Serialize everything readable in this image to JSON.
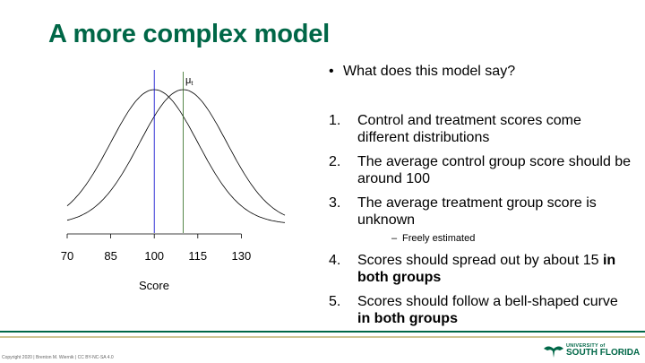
{
  "slide": {
    "title": "A more complex model",
    "bullet": "What does this model say?",
    "items": [
      {
        "num": "1.",
        "text": "Control and treatment scores come different distributions"
      },
      {
        "num": "2.",
        "text": "The average control group score should be around 100"
      },
      {
        "num": "3.",
        "text": "The average treatment group score is unknown"
      },
      {
        "num": "4.",
        "pre": "Scores should spread out by about 15 ",
        "bold": "in both groups"
      },
      {
        "num": "5.",
        "pre": "Scores should follow a bell-shaped curve ",
        "bold": "in both groups"
      }
    ],
    "sub_item": "Freely estimated",
    "footer": {
      "copyright": "Copyright 2020 | Brenton M. Wiernik | CC BY-NC-SA 4.0",
      "logo_small": "UNIVERSITY of",
      "logo_big": "SOUTH FLORIDA"
    }
  },
  "chart_data": {
    "type": "line",
    "xlabel": "Score",
    "x_ticks": [
      70,
      85,
      100,
      115,
      130
    ],
    "xlim": [
      70,
      145
    ],
    "series": [
      {
        "mean": 100,
        "sd": 15,
        "color": "#000000"
      },
      {
        "mean": 110,
        "sd": 15,
        "color": "#000000"
      }
    ],
    "vlines": [
      {
        "x": 100,
        "color": "#0000cc",
        "label": ""
      },
      {
        "x": 110,
        "color": "#2e6b1e",
        "label": "μ",
        "sub": "t"
      }
    ]
  }
}
